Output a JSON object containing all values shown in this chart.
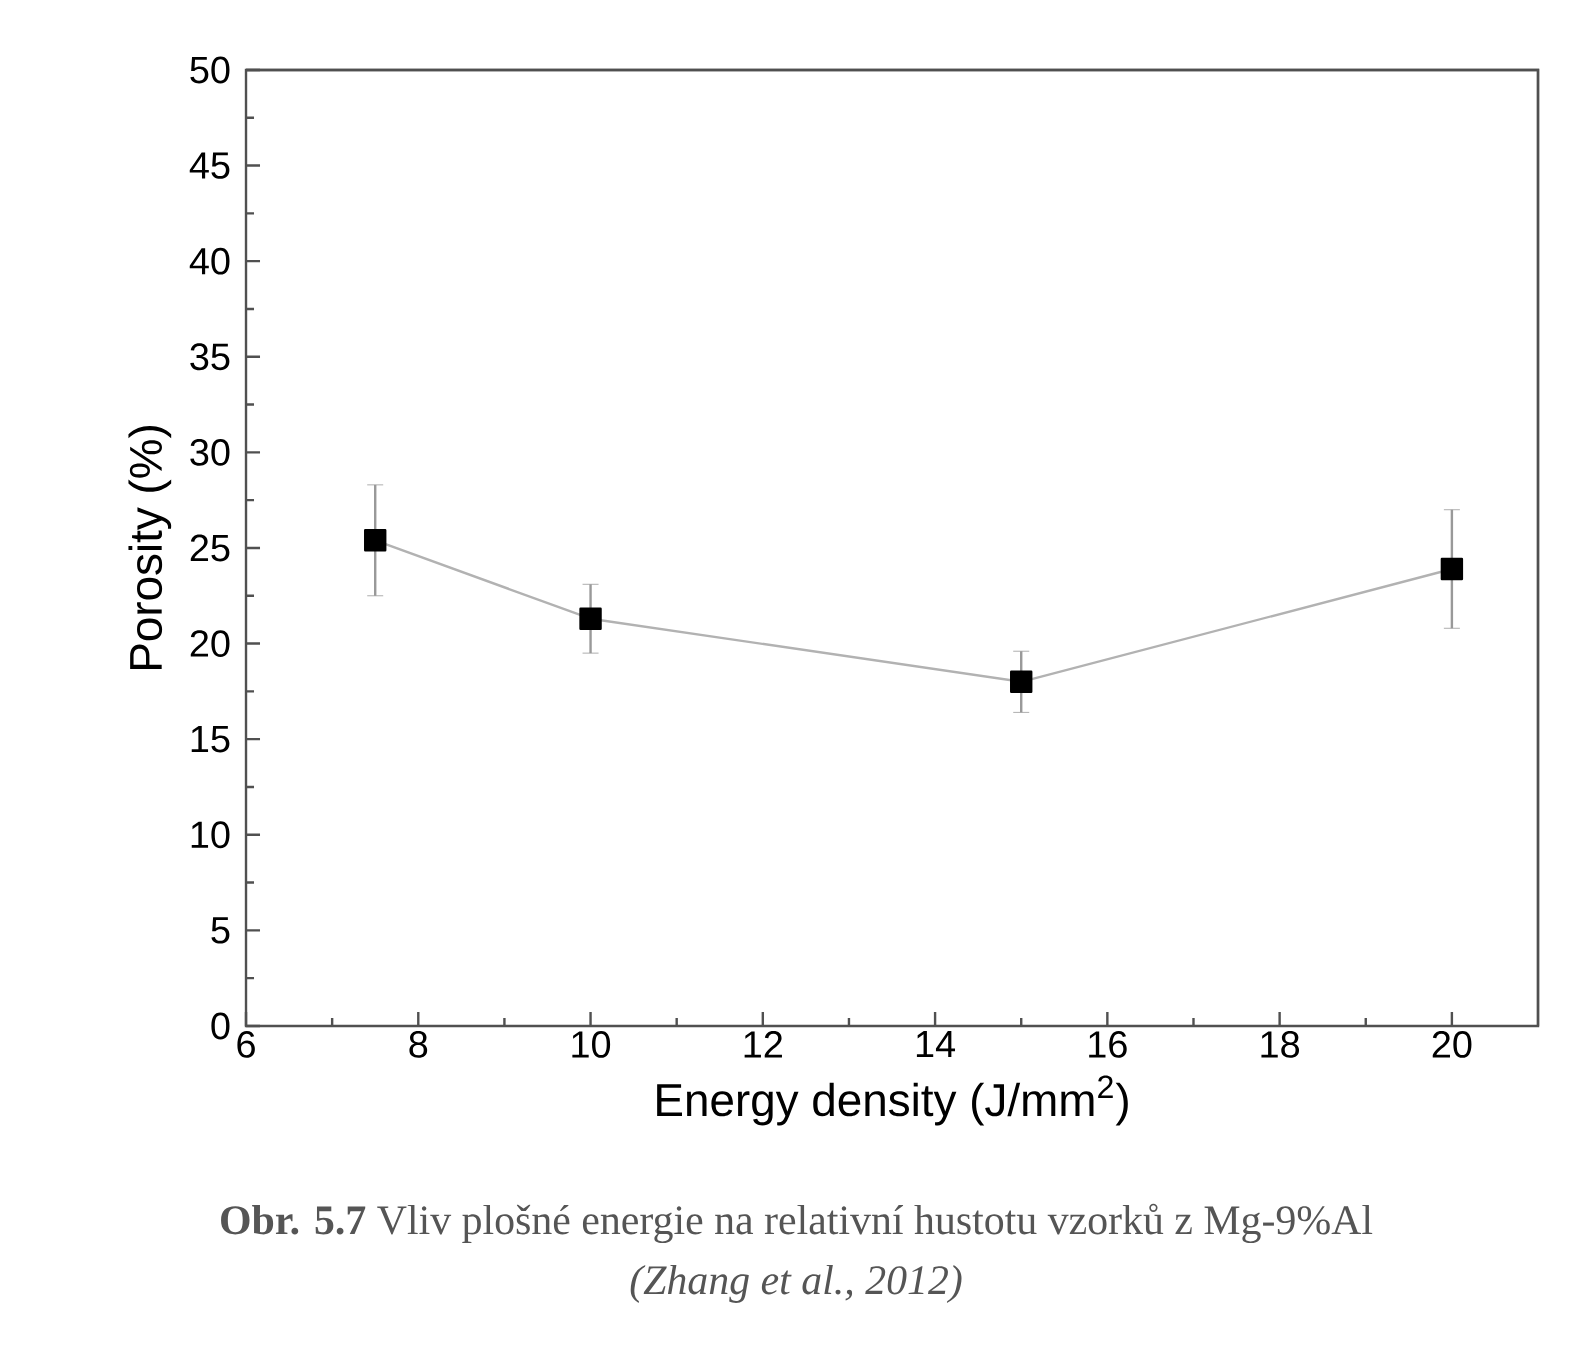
{
  "chart_data": {
    "type": "line",
    "xlabel": "Energy density (J/mm$^{2}$)",
    "ylabel": "Porosity (%)",
    "x": [
      7.5,
      10,
      15,
      20
    ],
    "series": [
      {
        "color": "#000000",
        "values": [
          25.4,
          21.3,
          18.0,
          23.9
        ],
        "errors": [
          2.9,
          1.8,
          1.6,
          3.1
        ]
      }
    ],
    "xlim": [
      6,
      21
    ],
    "xticks": [
      6,
      8,
      10,
      12,
      14,
      16,
      18,
      20
    ],
    "ylim": [
      0,
      50
    ],
    "yticks": [
      0,
      5,
      10,
      15,
      20,
      25,
      30,
      35,
      40,
      45,
      50
    ],
    "marker": "square",
    "line_style": "solid",
    "annotations": [
      "**Obr. 5.7** Vliv plošné energie na relativní hustotu vzorků z Mg-9%Al",
      "(Zhang et al., 2012)"
    ]
  }
}
